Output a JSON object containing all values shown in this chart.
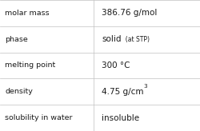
{
  "rows": [
    {
      "label": "molar mass",
      "value": "386.76 g/mol",
      "type": "simple"
    },
    {
      "label": "phase",
      "value": null,
      "type": "sub",
      "main": "solid",
      "sub": "  (at STP)"
    },
    {
      "label": "melting point",
      "value": "300 °C",
      "type": "simple"
    },
    {
      "label": "density",
      "value": null,
      "type": "sup",
      "main": "4.75 g/cm",
      "sup": "3"
    },
    {
      "label": "solubility in water",
      "value": "insoluble",
      "type": "simple"
    }
  ],
  "col_split": 0.468,
  "background": "#ffffff",
  "grid_color": "#c0c0c0",
  "label_color": "#1a1a1a",
  "value_color": "#1a1a1a",
  "label_fontsize": 6.8,
  "value_fontsize": 7.5,
  "sub_fontsize": 5.5,
  "sup_fontsize": 5.2,
  "fig_width": 2.5,
  "fig_height": 1.64,
  "fig_dpi": 100
}
